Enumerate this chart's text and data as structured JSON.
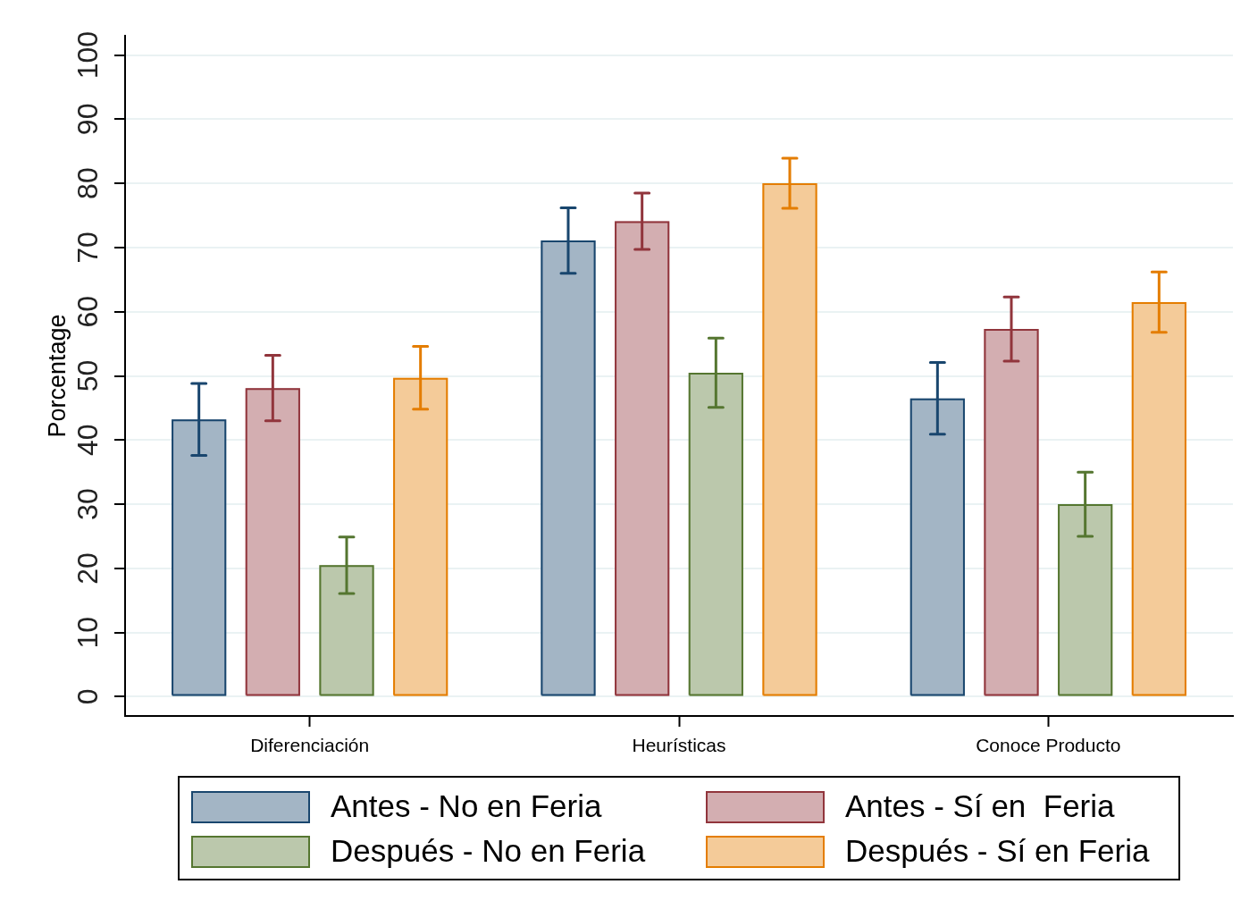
{
  "chart_data": {
    "type": "bar",
    "ylabel": "Porcentage",
    "categories": [
      "Diferenciación",
      "Heurísticas",
      "Conoce Producto"
    ],
    "series": [
      {
        "name": "Antes - No en Feria",
        "color": "#a3b5c5",
        "values": [
          43.2,
          71.1,
          46.5
        ],
        "errors": [
          5.6,
          5.1,
          5.6
        ]
      },
      {
        "name": "Antes - Sí en  Feria",
        "color": "#d3aeb1",
        "values": [
          48.1,
          74.1,
          57.3
        ],
        "errors": [
          5.1,
          4.4,
          5.0
        ]
      },
      {
        "name": "Después - No en Feria",
        "color": "#bbc8ac",
        "values": [
          20.5,
          50.5,
          30.0
        ],
        "errors": [
          4.4,
          5.4,
          5.0
        ]
      },
      {
        "name": "Después - Sí en Feria",
        "color": "#f4cb99",
        "values": [
          49.7,
          80.0,
          61.5
        ],
        "errors": [
          4.9,
          3.9,
          4.7
        ]
      }
    ],
    "ylim": [
      -3,
      103
    ],
    "yticks": [
      0,
      10,
      20,
      30,
      40,
      50,
      60,
      70,
      80,
      90,
      100
    ],
    "grid": "y",
    "legend": "bottom"
  }
}
